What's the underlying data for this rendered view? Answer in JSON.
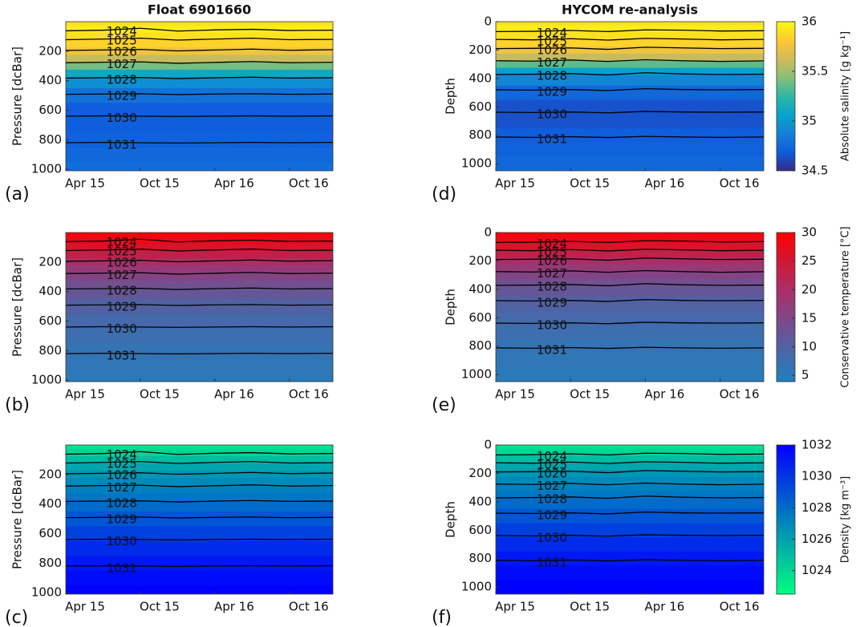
{
  "chart_data": [
    {
      "type": "heatmap",
      "title": "Float 6901660",
      "ylabel": "Pressure [dcBar]",
      "xlim": [
        0,
        21.5
      ],
      "xticks": [
        {
          "value": 0,
          "label": "Apr 15"
        },
        {
          "value": 6,
          "label": "Oct 15"
        },
        {
          "value": 12,
          "label": "Apr 16"
        },
        {
          "value": 18,
          "label": "Oct 16"
        }
      ],
      "ylim": [
        0,
        1010
      ],
      "y_inverted": true,
      "yticks": [
        200,
        400,
        600,
        800,
        1000
      ],
      "field_depths": [
        0,
        50,
        100,
        150,
        200,
        250,
        300,
        350,
        400,
        500,
        600,
        700,
        800,
        900,
        1000
      ],
      "panels": [
        {
          "label": "(a)",
          "values": [
            35.9,
            35.95,
            35.9,
            35.85,
            35.75,
            35.6,
            35.4,
            35.1,
            34.95,
            34.8,
            34.7,
            34.7,
            34.72,
            34.75,
            34.78
          ]
        },
        {
          "label": "(b)",
          "values": [
            29,
            28,
            26,
            23,
            20,
            17.5,
            15.5,
            13.5,
            12,
            10,
            8.5,
            7.5,
            6.5,
            5.8,
            5.2
          ]
        },
        {
          "label": "(c)",
          "values": [
            1023.5,
            1024,
            1025,
            1025.8,
            1026.4,
            1026.9,
            1027.2,
            1027.6,
            1028,
            1028.8,
            1029.6,
            1030.4,
            1031.1,
            1031.6,
            1032
          ]
        }
      ],
      "contour_x": [
        0,
        3,
        6,
        9,
        12,
        15,
        18,
        21.5
      ],
      "contours": [
        {
          "name": "1024",
          "values": [
            62,
            58,
            45,
            64,
            56,
            52,
            60,
            58
          ]
        },
        {
          "name": "1025",
          "values": [
            122,
            118,
            112,
            125,
            118,
            112,
            122,
            120
          ]
        },
        {
          "name": "1026",
          "values": [
            195,
            192,
            188,
            198,
            192,
            186,
            194,
            190
          ]
        },
        {
          "name": "1027",
          "values": [
            278,
            275,
            272,
            282,
            276,
            270,
            278,
            275
          ]
        },
        {
          "name": "1028",
          "values": [
            382,
            380,
            378,
            386,
            380,
            376,
            382,
            380
          ]
        },
        {
          "name": "1029",
          "values": [
            492,
            490,
            488,
            494,
            490,
            488,
            492,
            490
          ]
        },
        {
          "name": "1030",
          "values": [
            640,
            638,
            640,
            642,
            640,
            638,
            640,
            638
          ]
        },
        {
          "name": "1031",
          "values": [
            820,
            818,
            820,
            822,
            820,
            818,
            820,
            818
          ]
        }
      ]
    },
    {
      "type": "heatmap",
      "title": "HYCOM re-analysis",
      "ylabel": "Depth",
      "xlim": [
        0,
        21.5
      ],
      "xticks": [
        {
          "value": 0,
          "label": "Apr 15"
        },
        {
          "value": 6,
          "label": "Oct 15"
        },
        {
          "value": 12,
          "label": "Apr 16"
        },
        {
          "value": 18,
          "label": "Oct 16"
        }
      ],
      "ylim": [
        0,
        1050
      ],
      "y_inverted": true,
      "yticks": [
        0,
        200,
        400,
        600,
        800,
        1000
      ],
      "field_depths": [
        0,
        50,
        100,
        150,
        200,
        250,
        300,
        350,
        400,
        500,
        600,
        700,
        800,
        900,
        1000
      ],
      "panels": [
        {
          "label": "(d)",
          "values": [
            35.9,
            35.95,
            35.9,
            35.85,
            35.75,
            35.6,
            35.35,
            35.05,
            34.9,
            34.75,
            34.65,
            34.65,
            34.7,
            34.72,
            34.75
          ]
        },
        {
          "label": "(e)",
          "values": [
            29,
            28,
            26,
            23,
            20,
            17.5,
            15.5,
            13.5,
            12,
            10,
            8.5,
            7.5,
            6.5,
            5.8,
            5.2
          ]
        },
        {
          "label": "(f)",
          "values": [
            1023.5,
            1024,
            1025,
            1025.8,
            1026.4,
            1026.9,
            1027.2,
            1027.6,
            1028,
            1028.8,
            1029.6,
            1030.4,
            1031.1,
            1031.6,
            1032
          ]
        }
      ],
      "contour_x": [
        0,
        3,
        6,
        9,
        12,
        15,
        18,
        21.5
      ],
      "contours": [
        {
          "name": "1024",
          "values": [
            70,
            68,
            62,
            70,
            58,
            60,
            66,
            64
          ]
        },
        {
          "name": "1025",
          "values": [
            125,
            128,
            120,
            130,
            118,
            122,
            128,
            125
          ]
        },
        {
          "name": "1026",
          "values": [
            190,
            188,
            185,
            195,
            180,
            185,
            190,
            188
          ]
        },
        {
          "name": "1027",
          "values": [
            275,
            278,
            270,
            280,
            268,
            275,
            280,
            276
          ]
        },
        {
          "name": "1028",
          "values": [
            372,
            370,
            366,
            375,
            360,
            368,
            372,
            370
          ]
        },
        {
          "name": "1029",
          "values": [
            480,
            482,
            478,
            485,
            472,
            478,
            480,
            478
          ]
        },
        {
          "name": "1030",
          "values": [
            638,
            640,
            636,
            642,
            632,
            636,
            638,
            636
          ]
        },
        {
          "name": "1031",
          "values": [
            812,
            815,
            810,
            816,
            808,
            812,
            815,
            812
          ]
        }
      ]
    }
  ],
  "colorbars": [
    {
      "label": "Absolute salinity [g kg⁻¹]",
      "lim": [
        34.5,
        36
      ],
      "ticks": [
        34.5,
        35,
        35.5,
        36
      ],
      "colors": [
        "#352a87",
        "#0f5cdd",
        "#1481d6",
        "#06a4ca",
        "#2eb7a4",
        "#87bf77",
        "#d1bb59",
        "#fec832",
        "#f9fb0e"
      ]
    },
    {
      "label": "Conservative temperature [°C]",
      "lim": [
        3.9,
        30
      ],
      "ticks": [
        5,
        10,
        15,
        20,
        25,
        30
      ],
      "colors": [
        "#1f80c0",
        "#4a66a8",
        "#7a4a8a",
        "#a8306a",
        "#d01838",
        "#ff0000"
      ]
    },
    {
      "label": "Density [kg m⁻³]",
      "lim": [
        1022.5,
        1032
      ],
      "ticks": [
        1024,
        1026,
        1028,
        1030,
        1032
      ],
      "colors": [
        "#00ff80",
        "#0000ff"
      ]
    }
  ]
}
